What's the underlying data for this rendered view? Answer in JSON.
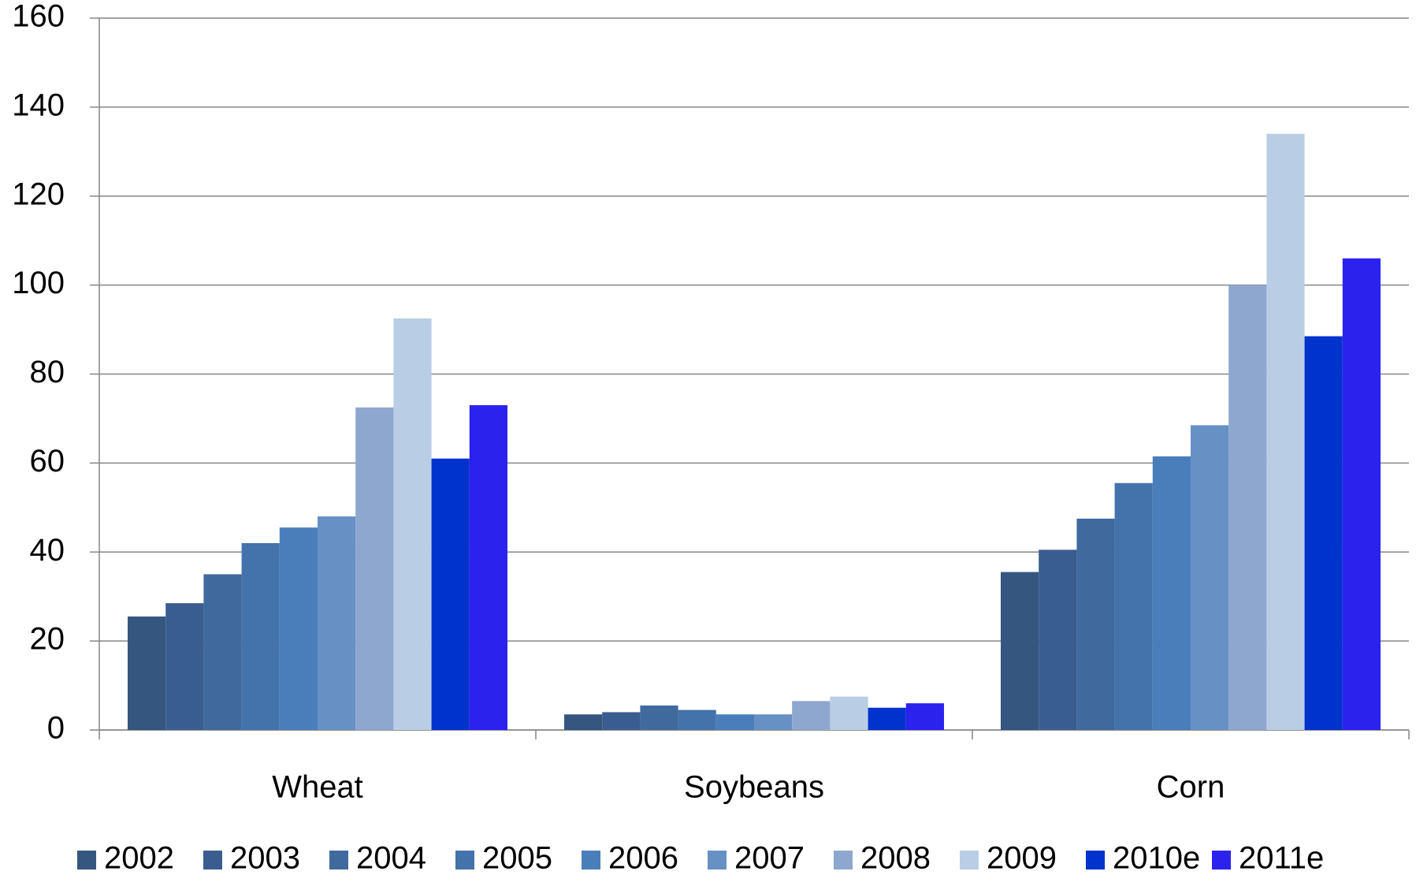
{
  "chart_data": {
    "type": "bar",
    "categories": [
      "Wheat",
      "Soybeans",
      "Corn"
    ],
    "series": [
      {
        "name": "2002",
        "color": "#34567f",
        "values": [
          25.5,
          3.5,
          35.5
        ]
      },
      {
        "name": "2003",
        "color": "#3a5d8f",
        "values": [
          28.5,
          4,
          40.5
        ]
      },
      {
        "name": "2004",
        "color": "#406a9e",
        "values": [
          35,
          5.5,
          47.5
        ]
      },
      {
        "name": "2005",
        "color": "#4472aa",
        "values": [
          42,
          4.5,
          55.5
        ]
      },
      {
        "name": "2006",
        "color": "#4a7ebb",
        "values": [
          45.5,
          3.5,
          61.5
        ]
      },
      {
        "name": "2007",
        "color": "#6790c4",
        "values": [
          48,
          3.5,
          68.5
        ]
      },
      {
        "name": "2008",
        "color": "#8ea7ce",
        "values": [
          72.5,
          6.5,
          100
        ]
      },
      {
        "name": "2009",
        "color": "#b9cde5",
        "values": [
          92.5,
          7.5,
          134
        ]
      },
      {
        "name": "2010e",
        "color": "#0033cc",
        "values": [
          61,
          5,
          88.5
        ]
      },
      {
        "name": "2011e",
        "color": "#2b22ee",
        "values": [
          73,
          6,
          106
        ]
      }
    ],
    "ylim": [
      0,
      160
    ],
    "yticks": [
      0,
      20,
      40,
      60,
      80,
      100,
      120,
      140,
      160
    ],
    "grid": true,
    "legend": "bottom"
  }
}
